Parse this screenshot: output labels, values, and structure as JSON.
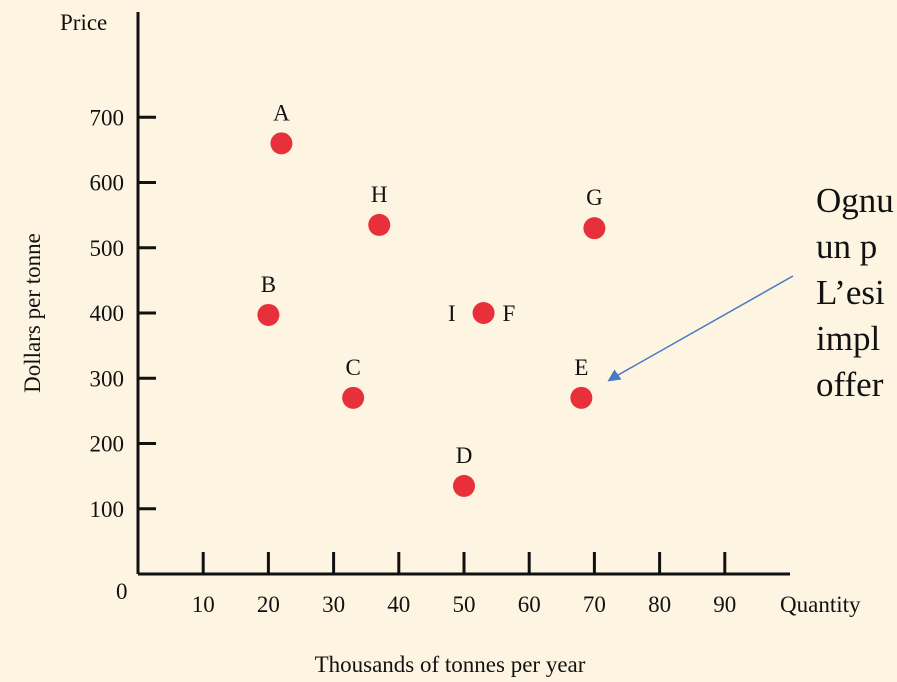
{
  "chart_data": {
    "type": "scatter",
    "title": "",
    "xlabel": "Thousands of tonnes per year",
    "ylabel": "Dollars per tonne",
    "x_axis_end_label": "Quantity",
    "y_axis_end_label": "Price",
    "origin_label": "0",
    "xlim": [
      0,
      100
    ],
    "ylim": [
      0,
      800
    ],
    "x_ticks": [
      10,
      20,
      30,
      40,
      50,
      60,
      70,
      80,
      90
    ],
    "y_ticks": [
      100,
      200,
      300,
      400,
      500,
      600,
      700
    ],
    "grid": false,
    "marker_color": "#e8303a",
    "points": [
      {
        "label": "A",
        "x": 22,
        "y": 660
      },
      {
        "label": "H",
        "x": 37,
        "y": 535
      },
      {
        "label": "G",
        "x": 70,
        "y": 530
      },
      {
        "label": "B",
        "x": 20,
        "y": 397
      },
      {
        "label": "F",
        "x": 53,
        "y": 400
      },
      {
        "label": "C",
        "x": 33,
        "y": 270
      },
      {
        "label": "E",
        "x": 68,
        "y": 270
      },
      {
        "label": "D",
        "x": 50,
        "y": 135
      }
    ],
    "extra_labels": [
      {
        "text": "I",
        "x": 50,
        "y": 400
      }
    ],
    "annotation": {
      "lines": [
        "Ognu",
        "un p",
        "L’esi",
        "impl",
        "offer"
      ],
      "arrow_color": "#4a78c2",
      "arrow_to": {
        "x": 72,
        "y": 295
      }
    }
  }
}
